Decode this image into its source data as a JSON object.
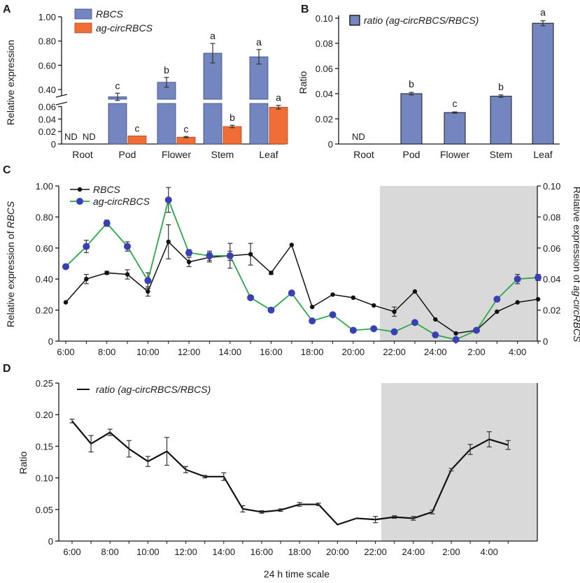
{
  "colors": {
    "rbcs_bar": "#7486c0",
    "circ_bar": "#f06e36",
    "rbcs_line": "#111111",
    "circ_line": "#2aa848",
    "circ_marker": "#3b3fb4",
    "night": "#d9d9d9"
  },
  "panels": {
    "a": "A",
    "b": "B",
    "c": "C",
    "d": "D"
  },
  "chart_data": [
    {
      "panel": "A",
      "type": "bar",
      "categories": [
        "Root",
        "Pod",
        "Flower",
        "Stem",
        "Leaf"
      ],
      "ylabel": "Relative expression",
      "upper_ticks": [
        "0.40",
        "0.60",
        "0.80",
        "1.00"
      ],
      "lower_ticks": [
        "0",
        "0.02",
        "0.04",
        "0.06"
      ],
      "upper_range": [
        0.32,
        1.0
      ],
      "lower_range": [
        0,
        0.065
      ],
      "series": [
        {
          "name": "RBCS",
          "values": [
            0,
            0.34,
            0.46,
            0.7,
            0.67
          ],
          "errors": [
            0,
            0.03,
            0.04,
            0.08,
            0.06
          ],
          "labels": [
            "ND",
            "c",
            "b",
            "a",
            "a"
          ]
        },
        {
          "name": "ag-circRBCS",
          "values": [
            0,
            0.013,
            0.011,
            0.028,
            0.059
          ],
          "errors": [
            0,
            0,
            0.001,
            0.002,
            0.003
          ],
          "labels": [
            "ND",
            "c",
            "c",
            "b",
            "a"
          ]
        }
      ]
    },
    {
      "panel": "B",
      "type": "bar",
      "categories": [
        "Root",
        "Pod",
        "Flower",
        "Stem",
        "Leaf"
      ],
      "ylabel": "Ratio",
      "ylim": [
        0,
        0.1
      ],
      "ticks": [
        "0",
        "0.02",
        "0.04",
        "0.06",
        "0.08",
        "0.10"
      ],
      "series": [
        {
          "name": "ratio (ag-circRBCS/RBCS)",
          "legend_name": "ratio",
          "legend_detail": "(ag-circRBCS/RBCS)",
          "values": [
            0,
            0.04,
            0.025,
            0.038,
            0.096
          ],
          "errors": [
            0,
            0.001,
            0.0005,
            0.001,
            0.002
          ],
          "labels": [
            "ND",
            "b",
            "c",
            "b",
            "a"
          ]
        }
      ]
    },
    {
      "panel": "C",
      "type": "line",
      "x": [
        6,
        7,
        8,
        9,
        10,
        11,
        12,
        13,
        14,
        15,
        16,
        17,
        18,
        19,
        20,
        21,
        22,
        23,
        24,
        25,
        26,
        27,
        28,
        29
      ],
      "xticks": [
        "6:00",
        "8:00",
        "10:00",
        "12:00",
        "14:00",
        "16:00",
        "18:00",
        "20:00",
        "22:00",
        "24:00",
        "2:00",
        "4:00"
      ],
      "night_start": 22,
      "ylabel": "Relative expression of RBCS",
      "ylabel_prefix": "Relative expression of ",
      "ylabel_gene": "RBCS",
      "y2label": "Relative expression of ag-circRBCS",
      "y2label_prefix": "Relative expression of ",
      "y2label_gene": "ag-circRBCS",
      "ylim": [
        0,
        1.0
      ],
      "y2lim": [
        0,
        0.1
      ],
      "yticks": [
        "0",
        "0.20",
        "0.40",
        "0.60",
        "0.80",
        "1.00"
      ],
      "y2ticks": [
        "0",
        "0.02",
        "0.04",
        "0.06",
        "0.08",
        "0.10"
      ],
      "series": [
        {
          "name": "RBCS",
          "axis": "left",
          "values": [
            0.25,
            0.4,
            0.44,
            0.43,
            0.32,
            0.64,
            0.51,
            0.54,
            0.55,
            0.56,
            0.44,
            0.62,
            0.22,
            0.3,
            0.28,
            0.23,
            0.19,
            0.32,
            0.14,
            0.05,
            0.07,
            0.19,
            0.25,
            0.27
          ],
          "errors": [
            0,
            0.03,
            0.01,
            0.03,
            0.03,
            0.11,
            0.03,
            0.03,
            0.08,
            0.07,
            0.01,
            0,
            0,
            0,
            0,
            0,
            0.03,
            0,
            0,
            0,
            0,
            0,
            0,
            0
          ]
        },
        {
          "name": "ag-circRBCS",
          "axis": "right",
          "values": [
            0.048,
            0.061,
            0.076,
            0.061,
            0.039,
            0.091,
            0.057,
            0.055,
            0.055,
            0.028,
            0.02,
            0.031,
            0.013,
            0.017,
            0.007,
            0.008,
            0.006,
            0.012,
            0.004,
            0.001,
            0.007,
            0.027,
            0.04,
            0.041
          ],
          "errors": [
            0,
            0.004,
            0.002,
            0.003,
            0.005,
            0.008,
            0.002,
            0.003,
            0.003,
            0,
            0,
            0,
            0,
            0,
            0,
            0,
            0,
            0,
            0,
            0,
            0,
            0,
            0.003,
            0.002
          ]
        }
      ]
    },
    {
      "panel": "D",
      "type": "line",
      "x": [
        6,
        7,
        8,
        9,
        10,
        11,
        12,
        13,
        14,
        15,
        16,
        17,
        18,
        19,
        20,
        21,
        22,
        23,
        24,
        25,
        26,
        27,
        28,
        29
      ],
      "xticks": [
        "6:00",
        "8:00",
        "10:00",
        "12:00",
        "14:00",
        "16:00",
        "18:00",
        "20:00",
        "22:00",
        "24:00",
        "2:00",
        "4:00"
      ],
      "night_start": 22,
      "ylabel": "Ratio",
      "xlabel": "24 h time scale",
      "ylim": [
        0,
        0.25
      ],
      "yticks": [
        "0",
        "0.05",
        "0.10",
        "0.15",
        "0.20",
        "0.25"
      ],
      "series": [
        {
          "name": "ratio (ag-circRBCS/RBCS)",
          "legend_name": "ratio",
          "legend_detail": "(ag-circRBCS/RBCS)",
          "values": [
            0.19,
            0.154,
            0.172,
            0.146,
            0.126,
            0.142,
            0.113,
            0.102,
            0.102,
            0.051,
            0.046,
            0.049,
            0.058,
            0.058,
            0.026,
            0.036,
            0.034,
            0.038,
            0.036,
            0.046,
            0.113,
            0.145,
            0.161,
            0.152
          ],
          "errors": [
            0.003,
            0.013,
            0.005,
            0.013,
            0.008,
            0.022,
            0.005,
            0.002,
            0.006,
            0.005,
            0.002,
            0.002,
            0.003,
            0.002,
            0,
            0,
            0.005,
            0.002,
            0.003,
            0.003,
            0.002,
            0.008,
            0.012,
            0.007
          ]
        }
      ]
    }
  ]
}
